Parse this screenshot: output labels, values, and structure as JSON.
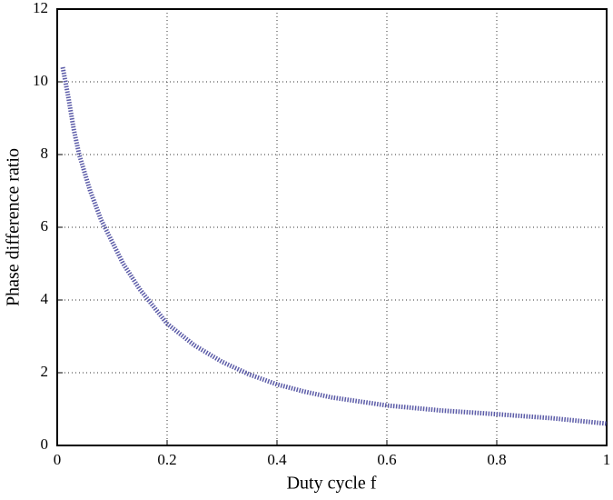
{
  "chart_data": {
    "type": "line",
    "xlabel": "Duty cycle f",
    "ylabel": "Phase difference ratio",
    "x": [
      0.01,
      0.02,
      0.03,
      0.04,
      0.06,
      0.08,
      0.1,
      0.12,
      0.15,
      0.2,
      0.25,
      0.3,
      0.35,
      0.4,
      0.45,
      0.5,
      0.6,
      0.7,
      0.8,
      0.9,
      1.0
    ],
    "series": [
      {
        "color": "#5c5ca8",
        "values": [
          10.4,
          9.6,
          8.7,
          8.0,
          7.0,
          6.2,
          5.6,
          5.0,
          4.3,
          3.35,
          2.75,
          2.3,
          1.95,
          1.68,
          1.48,
          1.32,
          1.1,
          0.96,
          0.86,
          0.75,
          0.6
        ]
      }
    ],
    "xlim": [
      0,
      1
    ],
    "ylim": [
      0,
      12
    ],
    "xticks": [
      0,
      0.2,
      0.4,
      0.6,
      0.8,
      1
    ],
    "yticks": [
      0,
      2,
      4,
      6,
      8,
      10,
      12
    ],
    "grid": true
  }
}
